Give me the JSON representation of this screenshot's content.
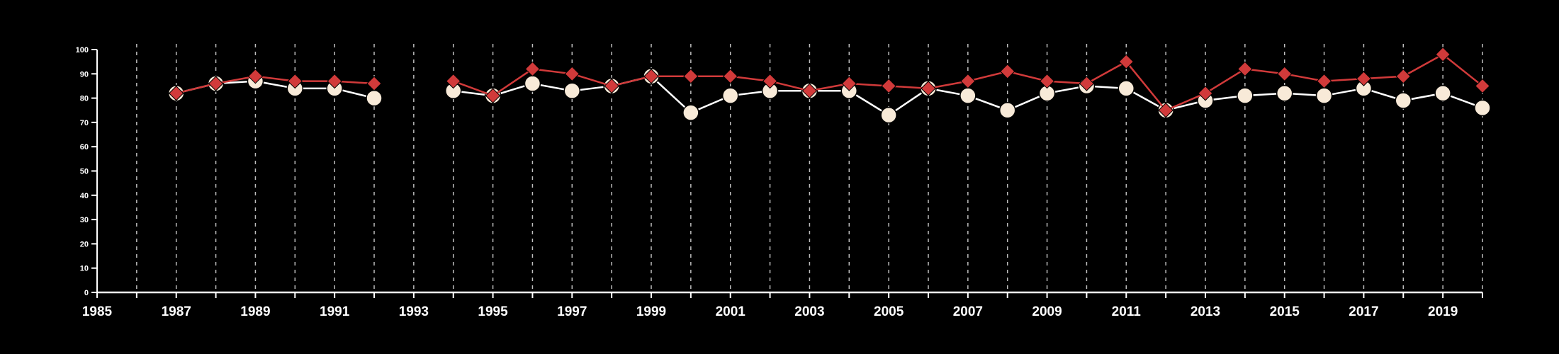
{
  "chart_data": {
    "type": "line",
    "title": "",
    "xlabel": "",
    "ylabel": "",
    "xlim": [
      1985,
      2020
    ],
    "ylim": [
      0,
      100
    ],
    "x_ticks": [
      1985,
      1987,
      1989,
      1991,
      1993,
      1995,
      1997,
      1999,
      2001,
      2003,
      2005,
      2007,
      2009,
      2011,
      2013,
      2015,
      2017,
      2019
    ],
    "y_ticks": [
      0,
      10,
      20,
      30,
      40,
      50,
      60,
      70,
      80,
      90,
      100
    ],
    "grid": "vertical dashed lines at each year",
    "legend": "none",
    "series": [
      {
        "marker": "circle",
        "line_color": "#ffffff",
        "marker_color": "#f8ead8",
        "x": [
          1987,
          1988,
          1989,
          1990,
          1991,
          1992,
          1994,
          1995,
          1996,
          1997,
          1998,
          1999,
          2000,
          2001,
          2002,
          2003,
          2004,
          2005,
          2006,
          2007,
          2008,
          2009,
          2010,
          2011,
          2012,
          2013,
          2014,
          2015,
          2016,
          2017,
          2018,
          2019,
          2020
        ],
        "values": [
          82,
          86,
          87,
          84,
          84,
          80,
          83,
          81,
          86,
          83,
          85,
          89,
          74,
          81,
          83,
          83,
          83,
          73,
          84,
          81,
          75,
          82,
          85,
          84,
          75,
          79,
          81,
          82,
          81,
          84,
          79,
          82,
          76
        ]
      },
      {
        "marker": "diamond",
        "line_color": "#d13a3a",
        "marker_color": "#d13a3a",
        "x": [
          1987,
          1988,
          1989,
          1990,
          1991,
          1992,
          1994,
          1995,
          1996,
          1997,
          1998,
          1999,
          2000,
          2001,
          2002,
          2003,
          2004,
          2005,
          2006,
          2007,
          2008,
          2009,
          2010,
          2011,
          2012,
          2013,
          2014,
          2015,
          2016,
          2017,
          2018,
          2019,
          2020
        ],
        "values": [
          82,
          86,
          89,
          87,
          87,
          86,
          87,
          81,
          92,
          90,
          85,
          89,
          89,
          89,
          87,
          83,
          86,
          85,
          84,
          87,
          91,
          87,
          86,
          95,
          75,
          82,
          92,
          90,
          87,
          88,
          89,
          98,
          85
        ]
      }
    ]
  }
}
